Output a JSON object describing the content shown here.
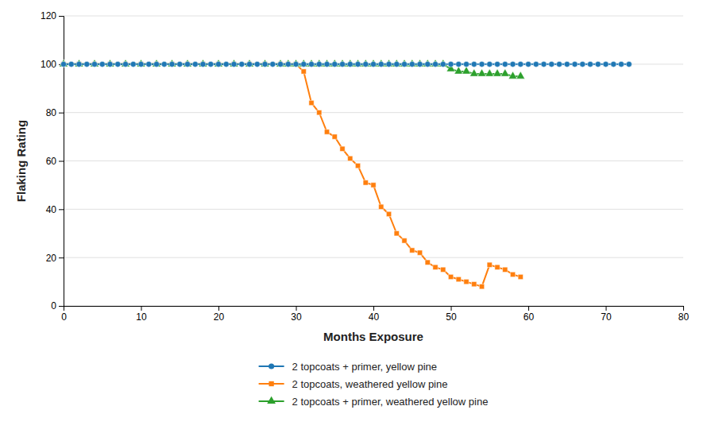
{
  "chart_data": {
    "type": "line",
    "xlabel": "Months Exposure",
    "ylabel": "Flaking Rating",
    "xlim": [
      0,
      80
    ],
    "ylim": [
      0,
      120
    ],
    "xticks": [
      0,
      10,
      20,
      30,
      40,
      50,
      60,
      70,
      80
    ],
    "yticks": [
      0,
      20,
      40,
      60,
      80,
      100,
      120
    ],
    "grid": true,
    "legend": "bottom",
    "series": [
      {
        "name": "2 topcoats + primer, yellow pine",
        "marker": "circle",
        "x": [
          0,
          1,
          2,
          3,
          4,
          5,
          6,
          7,
          8,
          9,
          10,
          11,
          12,
          13,
          14,
          15,
          16,
          17,
          18,
          19,
          20,
          21,
          22,
          23,
          24,
          25,
          26,
          27,
          28,
          29,
          30,
          31,
          32,
          33,
          34,
          35,
          36,
          37,
          38,
          39,
          40,
          41,
          42,
          43,
          44,
          45,
          46,
          47,
          48,
          49,
          50,
          51,
          52,
          53,
          54,
          55,
          56,
          57,
          58,
          59,
          60,
          61,
          62,
          63,
          64,
          65,
          66,
          67,
          68,
          69,
          70,
          71,
          72,
          73
        ],
        "values": [
          100,
          100,
          100,
          100,
          100,
          100,
          100,
          100,
          100,
          100,
          100,
          100,
          100,
          100,
          100,
          100,
          100,
          100,
          100,
          100,
          100,
          100,
          100,
          100,
          100,
          100,
          100,
          100,
          100,
          100,
          100,
          100,
          100,
          100,
          100,
          100,
          100,
          100,
          100,
          100,
          100,
          100,
          100,
          100,
          100,
          100,
          100,
          100,
          100,
          100,
          100,
          100,
          100,
          100,
          100,
          100,
          100,
          100,
          100,
          100,
          100,
          100,
          100,
          100,
          100,
          100,
          100,
          100,
          100,
          100,
          100,
          100,
          100,
          100
        ]
      },
      {
        "name": "2 topcoats, weathered yellow pine",
        "marker": "square",
        "x": [
          0,
          2,
          4,
          6,
          8,
          10,
          12,
          14,
          16,
          18,
          20,
          22,
          24,
          26,
          28,
          29,
          30,
          31,
          32,
          33,
          34,
          35,
          36,
          37,
          38,
          39,
          40,
          41,
          42,
          43,
          44,
          45,
          46,
          47,
          48,
          49,
          50,
          51,
          52,
          53,
          54,
          55,
          56,
          57,
          58,
          59
        ],
        "values": [
          100,
          100,
          100,
          100,
          100,
          100,
          100,
          100,
          100,
          100,
          100,
          100,
          100,
          100,
          100,
          100,
          100,
          97,
          84,
          80,
          72,
          70,
          65,
          61,
          58,
          51,
          50,
          41,
          38,
          30,
          27,
          23,
          22,
          18,
          16,
          15,
          12,
          11,
          10,
          9,
          8,
          17,
          16,
          15,
          13,
          12
        ]
      },
      {
        "name": "2 topcoats + primer, weathered yellow pine",
        "marker": "triangle",
        "x": [
          0,
          2,
          4,
          6,
          8,
          10,
          12,
          14,
          16,
          18,
          20,
          22,
          24,
          26,
          28,
          29,
          30,
          31,
          32,
          33,
          34,
          35,
          36,
          37,
          38,
          39,
          40,
          41,
          42,
          43,
          44,
          45,
          46,
          47,
          48,
          49,
          50,
          51,
          52,
          53,
          54,
          55,
          56,
          57,
          58,
          59
        ],
        "values": [
          100,
          100,
          100,
          100,
          100,
          100,
          100,
          100,
          100,
          100,
          100,
          100,
          100,
          100,
          100,
          100,
          100,
          100,
          100,
          100,
          100,
          100,
          100,
          100,
          100,
          100,
          100,
          100,
          100,
          100,
          100,
          100,
          100,
          100,
          100,
          100,
          98,
          97,
          97,
          96,
          96,
          96,
          96,
          96,
          95,
          95
        ]
      }
    ]
  }
}
